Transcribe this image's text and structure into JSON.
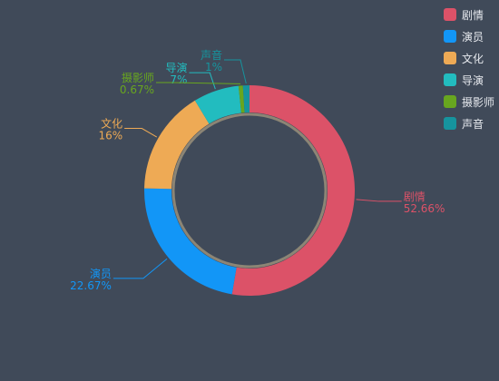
{
  "chart_data": {
    "type": "pie",
    "donut": true,
    "legend_position": "top-right",
    "slices": [
      {
        "name": "剧情",
        "value": 52.66,
        "label": "52.66%",
        "color": "#dc5268"
      },
      {
        "name": "演员",
        "value": 22.67,
        "label": "22.67%",
        "color": "#1296f7"
      },
      {
        "name": "文化",
        "value": 16,
        "label": "16%",
        "color": "#eeaa55"
      },
      {
        "name": "导演",
        "value": 7,
        "label": "7%",
        "color": "#22bcbf"
      },
      {
        "name": "摄影师",
        "value": 0.67,
        "label": "0.67%",
        "color": "#68a61f"
      },
      {
        "name": "声音",
        "value": 1,
        "label": "1%",
        "color": "#16949e"
      }
    ]
  }
}
